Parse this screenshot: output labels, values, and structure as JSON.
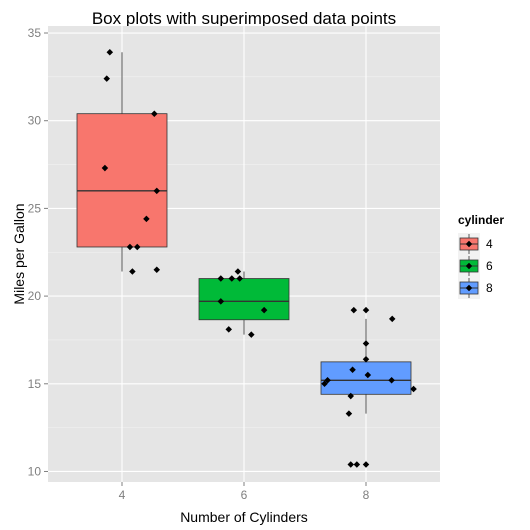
{
  "chart_data": {
    "type": "box",
    "title": "Box plots with superimposed data points",
    "xlabel": "Number of Cylinders",
    "ylabel": "Miles per Gallon",
    "categories": [
      "4",
      "6",
      "8"
    ],
    "ylim": [
      9.4,
      35.4
    ],
    "yticks": [
      10,
      15,
      20,
      25,
      30,
      35
    ],
    "ytick_labels": [
      "10",
      "15",
      "20",
      "25",
      "30",
      "35"
    ],
    "grid": true,
    "legend": {
      "title": "cylinder",
      "position": "right",
      "entries": [
        "4",
        "6",
        "8"
      ]
    },
    "colors": {
      "panel_bg": "#e5e5e5",
      "grid": "#ffffff",
      "box_outline": "#333333",
      "point": "#000000",
      "fill_4": "#f8766d",
      "fill_6": "#00ba38",
      "fill_8": "#619cff"
    },
    "series": [
      {
        "name": "4",
        "whisker_low": 21.4,
        "q1": 22.8,
        "median": 26.0,
        "q3": 30.4,
        "whisker_high": 33.9,
        "points": [
          {
            "x": 3.8,
            "y": 33.9
          },
          {
            "x": 3.75,
            "y": 32.4
          },
          {
            "x": 4.53,
            "y": 30.4
          },
          {
            "x": 3.72,
            "y": 27.3
          },
          {
            "x": 4.57,
            "y": 26.0
          },
          {
            "x": 4.4,
            "y": 24.4
          },
          {
            "x": 4.13,
            "y": 22.8
          },
          {
            "x": 4.25,
            "y": 22.8
          },
          {
            "x": 4.17,
            "y": 21.4
          },
          {
            "x": 4.57,
            "y": 21.5
          }
        ]
      },
      {
        "name": "6",
        "whisker_low": 17.8,
        "q1": 18.65,
        "median": 19.7,
        "q3": 21.0,
        "whisker_high": 21.4,
        "points": [
          {
            "x": 5.62,
            "y": 21.0
          },
          {
            "x": 5.8,
            "y": 21.0
          },
          {
            "x": 5.9,
            "y": 21.4
          },
          {
            "x": 5.93,
            "y": 21.0
          },
          {
            "x": 5.62,
            "y": 19.7
          },
          {
            "x": 6.33,
            "y": 19.2
          },
          {
            "x": 5.75,
            "y": 18.1
          },
          {
            "x": 6.12,
            "y": 17.8
          }
        ]
      },
      {
        "name": "8",
        "whisker_low": 13.3,
        "q1": 14.4,
        "median": 15.2,
        "q3": 16.25,
        "whisker_high": 18.7,
        "points": [
          {
            "x": 7.8,
            "y": 19.2
          },
          {
            "x": 8.0,
            "y": 19.2
          },
          {
            "x": 8.43,
            "y": 18.7
          },
          {
            "x": 8.0,
            "y": 17.3
          },
          {
            "x": 8.0,
            "y": 16.4
          },
          {
            "x": 7.78,
            "y": 15.8
          },
          {
            "x": 8.03,
            "y": 15.5
          },
          {
            "x": 7.32,
            "y": 15.0
          },
          {
            "x": 7.37,
            "y": 15.2
          },
          {
            "x": 8.42,
            "y": 15.2
          },
          {
            "x": 7.75,
            "y": 14.3
          },
          {
            "x": 8.78,
            "y": 14.7
          },
          {
            "x": 7.72,
            "y": 13.3
          },
          {
            "x": 7.75,
            "y": 10.4
          },
          {
            "x": 7.85,
            "y": 10.4
          },
          {
            "x": 8.0,
            "y": 10.4
          }
        ]
      }
    ]
  }
}
